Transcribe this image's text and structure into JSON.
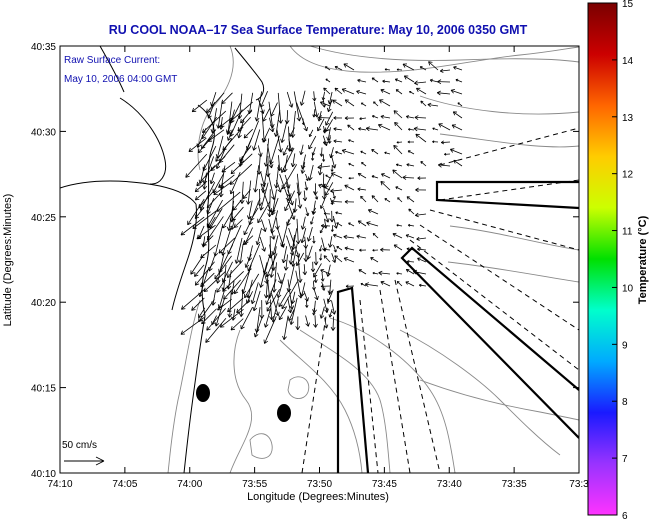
{
  "title": "RU COOL  NOAA–17  Sea Surface Temperature:  May 10, 2006 0350 GMT",
  "inset": {
    "line1": "Raw Surface Current:",
    "line2": "May 10, 2006 04:00 GMT"
  },
  "scale_label": "50 cm/s",
  "x_axis": {
    "label": "Longitude (Degrees:Minutes)",
    "ticks": [
      "74:10",
      "74:05",
      "74:00",
      "73:55",
      "73:50",
      "73:45",
      "73:40",
      "73:35",
      "73:3"
    ]
  },
  "y_axis": {
    "label": "Latitude (Degrees:Minutes)",
    "ticks": [
      "40:35",
      "40:30",
      "40:25",
      "40:20",
      "40:15",
      "40:10"
    ]
  },
  "colorbar": {
    "label": "Temperature (°C)",
    "ticks": [
      "15",
      "14",
      "13",
      "12",
      "11",
      "10",
      "9",
      "8",
      "7",
      "6"
    ],
    "range": [
      6,
      15
    ],
    "colors": [
      "#ff33ff",
      "#9933ff",
      "#1a1aff",
      "#00aaff",
      "#00ffcc",
      "#00e000",
      "#ccff00",
      "#ffcc00",
      "#ff6600",
      "#cc0000",
      "#7a0000"
    ]
  },
  "map": {
    "land_color": "#ffffff",
    "bathymetry_color": "#8a8a8a",
    "vector_color": "#000000"
  }
}
